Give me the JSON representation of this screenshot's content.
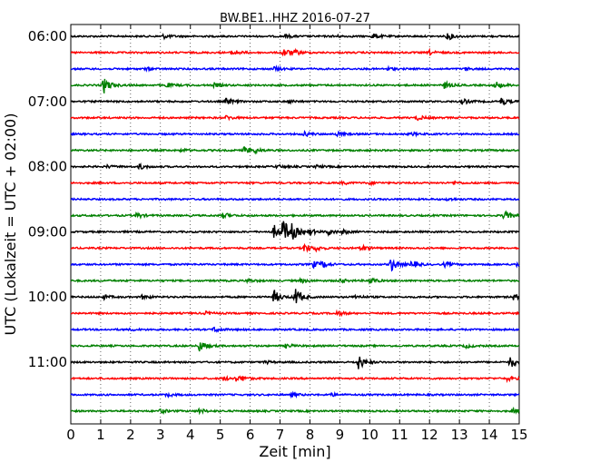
{
  "chart_data": {
    "type": "line",
    "title": "BW.BE1..HHZ 2016-07-27",
    "xlabel": "Zeit  [min]",
    "ylabel": "UTC (Lokalzeit = UTC + 02:00)",
    "xlim": [
      0,
      15
    ],
    "x_ticks": [
      "0",
      "1",
      "2",
      "3",
      "4",
      "5",
      "6",
      "7",
      "8",
      "9",
      "10",
      "11",
      "12",
      "13",
      "14",
      "15"
    ],
    "y_tick_labels": [
      "06:00",
      "07:00",
      "08:00",
      "09:00",
      "10:00",
      "11:00"
    ],
    "grid": "vertical dotted",
    "trace_interval_min": 15,
    "trace_colors": [
      "#000000",
      "#ff0000",
      "#0000ff",
      "#008000"
    ],
    "series": [
      {
        "start": "06:00",
        "color": "#000000",
        "events": [
          [
            3.1,
            0.3
          ],
          [
            7.2,
            0.25
          ],
          [
            8.8,
            0.2
          ],
          [
            10.1,
            0.45
          ],
          [
            12.6,
            0.55
          ]
        ]
      },
      {
        "start": "06:15",
        "color": "#ff0000",
        "events": [
          [
            5.4,
            0.5
          ],
          [
            7.1,
            0.7
          ],
          [
            7.5,
            0.3
          ],
          [
            12.0,
            0.3
          ]
        ]
      },
      {
        "start": "06:30",
        "color": "#0000ff",
        "events": [
          [
            2.5,
            0.2
          ],
          [
            6.8,
            0.3
          ],
          [
            10.6,
            0.2
          ],
          [
            13.2,
            0.2
          ]
        ]
      },
      {
        "start": "06:45",
        "color": "#008000",
        "events": [
          [
            1.1,
            1.2
          ],
          [
            3.2,
            0.3
          ],
          [
            4.8,
            0.3
          ],
          [
            12.5,
            0.5
          ],
          [
            14.2,
            0.6
          ]
        ]
      },
      {
        "start": "07:00",
        "color": "#000000",
        "events": [
          [
            5.2,
            0.5
          ],
          [
            7.3,
            0.2
          ],
          [
            13.1,
            0.4
          ],
          [
            14.4,
            0.5
          ]
        ]
      },
      {
        "start": "07:15",
        "color": "#ff0000",
        "events": [
          [
            5.2,
            0.3
          ],
          [
            11.6,
            0.35
          ]
        ]
      },
      {
        "start": "07:30",
        "color": "#0000ff",
        "events": [
          [
            7.8,
            0.35
          ],
          [
            8.9,
            0.3
          ],
          [
            11.4,
            0.2
          ]
        ]
      },
      {
        "start": "07:45",
        "color": "#008000",
        "events": [
          [
            3.7,
            0.2
          ],
          [
            5.8,
            0.55
          ],
          [
            6.1,
            0.4
          ]
        ]
      },
      {
        "start": "08:00",
        "color": "#000000",
        "events": [
          [
            1.2,
            0.2
          ],
          [
            2.3,
            0.4
          ],
          [
            6.9,
            0.25
          ],
          [
            8.2,
            0.2
          ]
        ]
      },
      {
        "start": "08:15",
        "color": "#ff0000",
        "events": [
          [
            9.1,
            0.2
          ],
          [
            10.0,
            0.2
          ],
          [
            12.8,
            0.2
          ]
        ]
      },
      {
        "start": "08:30",
        "color": "#0000ff",
        "events": [
          [
            12.6,
            0.2
          ]
        ]
      },
      {
        "start": "08:45",
        "color": "#008000",
        "events": [
          [
            2.2,
            0.4
          ],
          [
            5.1,
            0.45
          ],
          [
            14.5,
            0.7
          ]
        ]
      },
      {
        "start": "09:00",
        "color": "#000000",
        "events": [
          [
            6.8,
            1.0
          ],
          [
            7.1,
            1.9
          ],
          [
            7.4,
            0.9
          ],
          [
            8.0,
            0.4
          ],
          [
            8.6,
            0.45
          ],
          [
            9.1,
            0.3
          ]
        ]
      },
      {
        "start": "09:15",
        "color": "#ff0000",
        "events": [
          [
            7.8,
            0.7
          ],
          [
            8.2,
            0.3
          ],
          [
            9.7,
            0.5
          ]
        ]
      },
      {
        "start": "09:30",
        "color": "#0000ff",
        "events": [
          [
            8.1,
            0.5
          ],
          [
            8.4,
            0.4
          ],
          [
            10.7,
            1.1
          ],
          [
            11.4,
            0.6
          ],
          [
            12.5,
            0.3
          ],
          [
            14.9,
            0.3
          ]
        ]
      },
      {
        "start": "09:45",
        "color": "#008000",
        "events": [
          [
            5.9,
            0.3
          ],
          [
            7.7,
            0.3
          ],
          [
            9.0,
            0.3
          ],
          [
            10.0,
            0.5
          ]
        ]
      },
      {
        "start": "10:00",
        "color": "#000000",
        "events": [
          [
            1.1,
            0.3
          ],
          [
            2.4,
            0.3
          ],
          [
            6.8,
            1.0
          ],
          [
            7.5,
            1.4
          ],
          [
            9.5,
            0.3
          ],
          [
            14.8,
            0.4
          ]
        ]
      },
      {
        "start": "10:15",
        "color": "#ff0000",
        "events": [
          [
            4.5,
            0.25
          ],
          [
            8.9,
            0.35
          ]
        ]
      },
      {
        "start": "10:30",
        "color": "#0000ff",
        "events": [
          [
            2.0,
            0.15
          ],
          [
            4.8,
            0.4
          ]
        ]
      },
      {
        "start": "10:45",
        "color": "#008000",
        "events": [
          [
            4.3,
            0.9
          ],
          [
            7.2,
            0.3
          ],
          [
            13.2,
            0.3
          ]
        ]
      },
      {
        "start": "11:00",
        "color": "#000000",
        "events": [
          [
            6.5,
            0.2
          ],
          [
            9.6,
            1.2
          ],
          [
            14.7,
            0.9
          ]
        ]
      },
      {
        "start": "11:15",
        "color": "#ff0000",
        "events": [
          [
            5.1,
            0.3
          ],
          [
            5.5,
            0.35
          ],
          [
            5.7,
            0.3
          ],
          [
            14.6,
            0.3
          ]
        ]
      },
      {
        "start": "11:30",
        "color": "#0000ff",
        "events": [
          [
            3.2,
            0.25
          ],
          [
            7.4,
            0.25
          ],
          [
            8.7,
            0.2
          ]
        ]
      },
      {
        "start": "11:45",
        "color": "#008000",
        "events": [
          [
            3.0,
            0.3
          ],
          [
            4.3,
            0.35
          ],
          [
            14.8,
            0.3
          ]
        ]
      }
    ]
  }
}
